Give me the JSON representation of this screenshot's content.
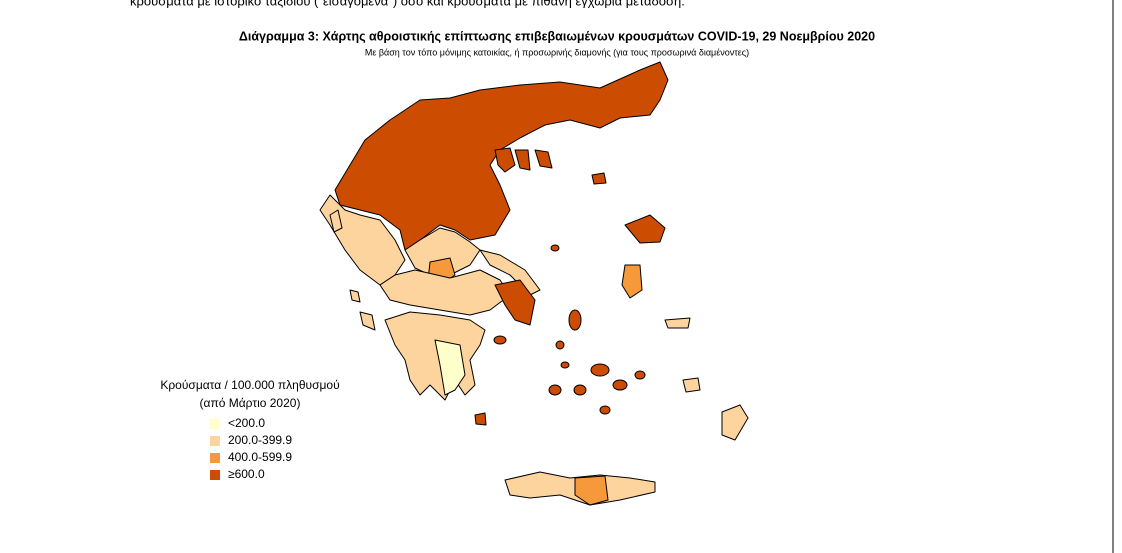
{
  "header": {
    "cut_text": "κρούσματα με ιστορικό ταξιδίου (\"εισαγόμενα\") όσο και κρούσματα με πιθανή εγχώρια μετάδοση."
  },
  "map": {
    "title": "Διάγραμμα 3: Χάρτης αθροιστικής επίπτωσης επιβεβαιωμένων κρουσμάτων COVID-19, 29 Νοεμβρίου 2020",
    "subtitle": "Με βάση τον τόπο μόνιμης κατοικίας, ή προσωρινής διαμονής (για τους προσωρινά διαμένοντες)"
  },
  "legend": {
    "title": [
      "Κρούσματα / 100.000 πληθυσμού",
      "(από Μάρτιο 2020)"
    ],
    "items": [
      {
        "label": "<200.0",
        "color": "#ffffcc"
      },
      {
        "label": "200.0-399.9",
        "color": "#fdd49e"
      },
      {
        "label": "400.0-599.9",
        "color": "#f5993a"
      },
      {
        "label": "≥600.0",
        "color": "#cc4c02"
      }
    ]
  }
}
